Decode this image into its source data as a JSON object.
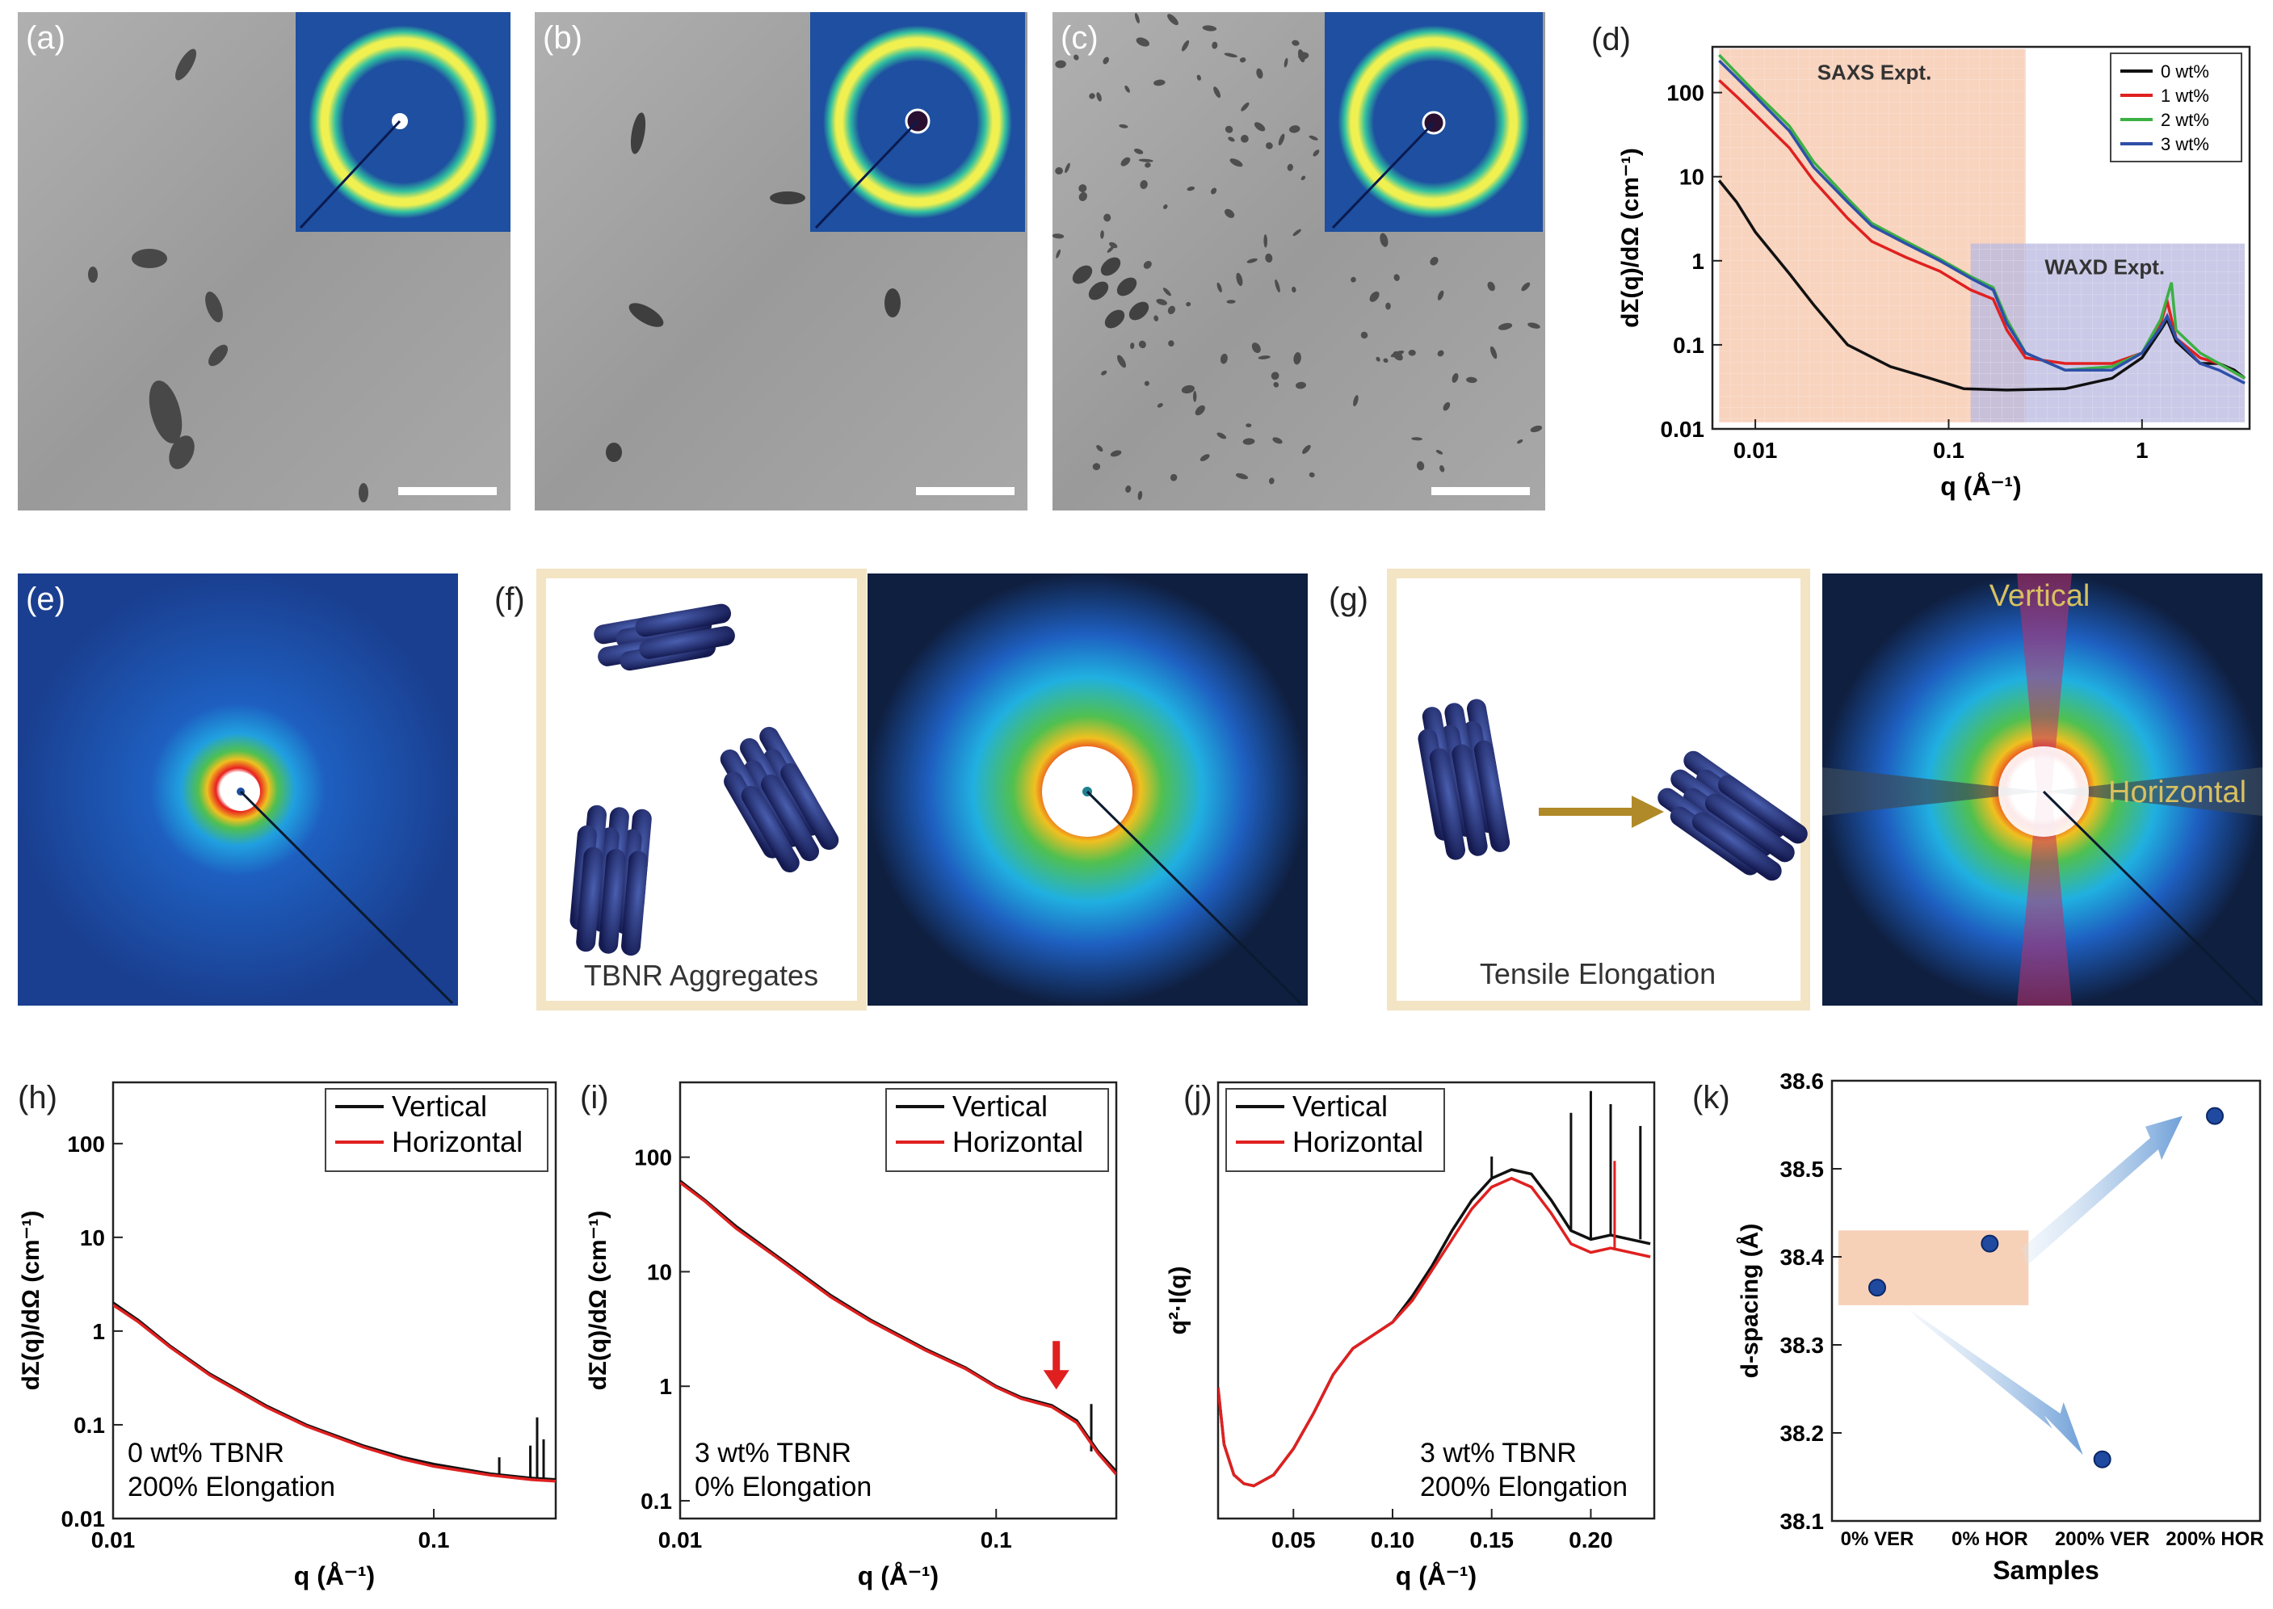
{
  "panel_labels": {
    "a": "(a)",
    "b": "(b)",
    "c": "(c)",
    "d": "(d)",
    "e": "(e)",
    "f": "(f)",
    "g": "(g)",
    "h": "(h)",
    "i": "(i)",
    "j": "(j)",
    "k": "(k)"
  },
  "colors": {
    "black": "#111111",
    "red": "#e02020",
    "green": "#3cb043",
    "blue": "#2e4fa8",
    "saxs_bg": "#f5c4a8",
    "waxd_bg": "#b8b8e0",
    "frame": "#f3e4c4",
    "det_bg": "#1e4fa0"
  },
  "schematic": {
    "f_caption": "TBNR Aggregates",
    "g_caption": "Tensile Elongation",
    "g_vertical": "Vertical",
    "g_horizontal": "Horizontal"
  },
  "chart_data": [
    {
      "id": "d",
      "type": "line",
      "xscale": "log",
      "yscale": "log",
      "xlabel": "q (Å⁻¹)",
      "ylabel": "dΣ(q)/dΩ (cm⁻¹)",
      "xlim": [
        0.006,
        3.6
      ],
      "ylim": [
        0.01,
        350
      ],
      "xticks": [
        {
          "v": 0.01,
          "t": "0.01"
        },
        {
          "v": 0.1,
          "t": "0.1"
        },
        {
          "v": 1,
          "t": "1"
        }
      ],
      "yticks": [
        {
          "v": 0.01,
          "t": "0.01"
        },
        {
          "v": 0.1,
          "t": "0.1"
        },
        {
          "v": 1,
          "t": "1"
        },
        {
          "v": 10,
          "t": "10"
        },
        {
          "v": 100,
          "t": "100"
        }
      ],
      "regions": [
        {
          "label": "SAXS Expt.",
          "x0": 0.0065,
          "x1": 0.25,
          "y0": 0.012,
          "y1": 330,
          "color": "saxs_bg"
        },
        {
          "label": "WAXD Expt.",
          "x0": 0.13,
          "x1": 3.4,
          "y0": 0.012,
          "y1": 1.6,
          "color": "waxd_bg"
        }
      ],
      "legend": "top-right",
      "series": [
        {
          "name": "0 wt%",
          "color": "black",
          "points": [
            [
              0.0065,
              9
            ],
            [
              0.008,
              5
            ],
            [
              0.01,
              2.2
            ],
            [
              0.015,
              0.7
            ],
            [
              0.02,
              0.3
            ],
            [
              0.03,
              0.1
            ],
            [
              0.05,
              0.055
            ],
            [
              0.08,
              0.04
            ],
            [
              0.12,
              0.03
            ],
            [
              0.2,
              0.029
            ],
            [
              0.4,
              0.03
            ],
            [
              0.7,
              0.04
            ],
            [
              1.0,
              0.07
            ],
            [
              1.25,
              0.15
            ],
            [
              1.35,
              0.2
            ],
            [
              1.5,
              0.11
            ],
            [
              2.0,
              0.06
            ],
            [
              2.5,
              0.06
            ],
            [
              3.0,
              0.05
            ],
            [
              3.4,
              0.04
            ]
          ]
        },
        {
          "name": "1 wt%",
          "color": "red",
          "points": [
            [
              0.0065,
              140
            ],
            [
              0.008,
              90
            ],
            [
              0.01,
              55
            ],
            [
              0.015,
              22
            ],
            [
              0.02,
              9
            ],
            [
              0.03,
              3.2
            ],
            [
              0.04,
              1.7
            ],
            [
              0.06,
              1.1
            ],
            [
              0.09,
              0.75
            ],
            [
              0.13,
              0.45
            ],
            [
              0.17,
              0.35
            ],
            [
              0.2,
              0.15
            ],
            [
              0.25,
              0.07
            ],
            [
              0.4,
              0.06
            ],
            [
              0.7,
              0.06
            ],
            [
              1.0,
              0.08
            ],
            [
              1.25,
              0.18
            ],
            [
              1.35,
              0.33
            ],
            [
              1.5,
              0.12
            ],
            [
              2.0,
              0.07
            ],
            [
              2.5,
              0.06
            ],
            [
              3.4,
              0.04
            ]
          ]
        },
        {
          "name": "2 wt%",
          "color": "green",
          "points": [
            [
              0.0065,
              280
            ],
            [
              0.008,
              170
            ],
            [
              0.01,
              100
            ],
            [
              0.015,
              40
            ],
            [
              0.02,
              15
            ],
            [
              0.03,
              5.5
            ],
            [
              0.04,
              2.8
            ],
            [
              0.06,
              1.7
            ],
            [
              0.09,
              1.05
            ],
            [
              0.13,
              0.65
            ],
            [
              0.17,
              0.48
            ],
            [
              0.2,
              0.2
            ],
            [
              0.25,
              0.08
            ],
            [
              0.4,
              0.05
            ],
            [
              0.7,
              0.055
            ],
            [
              1.0,
              0.08
            ],
            [
              1.25,
              0.2
            ],
            [
              1.42,
              0.55
            ],
            [
              1.5,
              0.15
            ],
            [
              2.0,
              0.08
            ],
            [
              2.5,
              0.06
            ],
            [
              3.4,
              0.04
            ]
          ]
        },
        {
          "name": "3 wt%",
          "color": "blue",
          "points": [
            [
              0.0065,
              240
            ],
            [
              0.008,
              150
            ],
            [
              0.01,
              90
            ],
            [
              0.015,
              35
            ],
            [
              0.02,
              13
            ],
            [
              0.03,
              5
            ],
            [
              0.04,
              2.6
            ],
            [
              0.06,
              1.6
            ],
            [
              0.09,
              1.0
            ],
            [
              0.13,
              0.62
            ],
            [
              0.17,
              0.45
            ],
            [
              0.2,
              0.18
            ],
            [
              0.25,
              0.08
            ],
            [
              0.4,
              0.05
            ],
            [
              0.7,
              0.05
            ],
            [
              1.0,
              0.08
            ],
            [
              1.25,
              0.16
            ],
            [
              1.35,
              0.22
            ],
            [
              1.5,
              0.12
            ],
            [
              2.0,
              0.06
            ],
            [
              2.5,
              0.05
            ],
            [
              3.4,
              0.035
            ]
          ]
        }
      ]
    },
    {
      "id": "h",
      "type": "line",
      "xscale": "log",
      "yscale": "log",
      "xlabel": "q (Å⁻¹)",
      "ylabel": "dΣ(q)/dΩ (cm⁻¹)",
      "xlim": [
        0.01,
        0.24
      ],
      "ylim": [
        0.01,
        450
      ],
      "xticks": [
        {
          "v": 0.01,
          "t": "0.01"
        },
        {
          "v": 0.1,
          "t": "0.1"
        }
      ],
      "yticks": [
        {
          "v": 0.01,
          "t": "0.01"
        },
        {
          "v": 0.1,
          "t": "0.1"
        },
        {
          "v": 1,
          "t": "1"
        },
        {
          "v": 10,
          "t": "10"
        },
        {
          "v": 100,
          "t": "100"
        }
      ],
      "annotation": [
        "0 wt% TBNR",
        "200% Elongation"
      ],
      "legend": "top-right",
      "series": [
        {
          "name": "Vertical",
          "color": "black",
          "points": [
            [
              0.01,
              2.0
            ],
            [
              0.012,
              1.3
            ],
            [
              0.015,
              0.7
            ],
            [
              0.02,
              0.35
            ],
            [
              0.03,
              0.16
            ],
            [
              0.04,
              0.1
            ],
            [
              0.06,
              0.06
            ],
            [
              0.08,
              0.045
            ],
            [
              0.1,
              0.038
            ],
            [
              0.15,
              0.03
            ],
            [
              0.2,
              0.027
            ],
            [
              0.24,
              0.026
            ]
          ],
          "spikes": [
            [
              0.16,
              0.045
            ],
            [
              0.2,
              0.06
            ],
            [
              0.21,
              0.12
            ],
            [
              0.22,
              0.07
            ]
          ]
        },
        {
          "name": "Horizontal",
          "color": "red",
          "points": [
            [
              0.01,
              1.9
            ],
            [
              0.012,
              1.25
            ],
            [
              0.015,
              0.68
            ],
            [
              0.02,
              0.34
            ],
            [
              0.03,
              0.155
            ],
            [
              0.04,
              0.097
            ],
            [
              0.06,
              0.058
            ],
            [
              0.08,
              0.043
            ],
            [
              0.1,
              0.036
            ],
            [
              0.15,
              0.029
            ],
            [
              0.2,
              0.026
            ],
            [
              0.24,
              0.025
            ]
          ]
        }
      ]
    },
    {
      "id": "i",
      "type": "line",
      "xscale": "log",
      "yscale": "log",
      "xlabel": "q (Å⁻¹)",
      "ylabel": "dΣ(q)/dΩ (cm⁻¹)",
      "xlim": [
        0.01,
        0.24
      ],
      "ylim": [
        0.07,
        450
      ],
      "xticks": [
        {
          "v": 0.01,
          "t": "0.01"
        },
        {
          "v": 0.1,
          "t": "0.1"
        }
      ],
      "yticks": [
        {
          "v": 0.1,
          "t": "0.1"
        },
        {
          "v": 1,
          "t": "1"
        },
        {
          "v": 10,
          "t": "10"
        },
        {
          "v": 100,
          "t": "100"
        }
      ],
      "annotation": [
        "3 wt% TBNR",
        "0% Elongation"
      ],
      "arrow_at": {
        "x": 0.155,
        "y": 0.7
      },
      "legend": "top-right",
      "series": [
        {
          "name": "Vertical",
          "color": "black",
          "points": [
            [
              0.01,
              62
            ],
            [
              0.012,
              42
            ],
            [
              0.015,
              25
            ],
            [
              0.02,
              14
            ],
            [
              0.03,
              6.2
            ],
            [
              0.04,
              3.8
            ],
            [
              0.06,
              2.1
            ],
            [
              0.08,
              1.45
            ],
            [
              0.1,
              1.0
            ],
            [
              0.12,
              0.8
            ],
            [
              0.15,
              0.68
            ],
            [
              0.18,
              0.5
            ],
            [
              0.21,
              0.27
            ],
            [
              0.24,
              0.18
            ]
          ],
          "spikes": [
            [
              0.2,
              0.7
            ]
          ]
        },
        {
          "name": "Horizontal",
          "color": "red",
          "points": [
            [
              0.01,
              60
            ],
            [
              0.012,
              41
            ],
            [
              0.015,
              24
            ],
            [
              0.02,
              13.6
            ],
            [
              0.03,
              6.0
            ],
            [
              0.04,
              3.7
            ],
            [
              0.06,
              2.05
            ],
            [
              0.08,
              1.42
            ],
            [
              0.1,
              0.98
            ],
            [
              0.12,
              0.78
            ],
            [
              0.15,
              0.66
            ],
            [
              0.18,
              0.48
            ],
            [
              0.21,
              0.26
            ],
            [
              0.24,
              0.17
            ]
          ]
        }
      ]
    },
    {
      "id": "j",
      "type": "line",
      "xscale": "linear",
      "yscale": "linear",
      "xlabel": "q (Å⁻¹)",
      "ylabel": "q²·I(q)",
      "xlim": [
        0.012,
        0.232
      ],
      "ylim": [
        0,
        1
      ],
      "xticks": [
        {
          "v": 0.05,
          "t": "0.05"
        },
        {
          "v": 0.1,
          "t": "0.10"
        },
        {
          "v": 0.15,
          "t": "0.15"
        },
        {
          "v": 0.2,
          "t": "0.20"
        }
      ],
      "yticks": [],
      "annotation": [
        "3 wt% TBNR",
        "200% Elongation"
      ],
      "legend": "top-left",
      "series": [
        {
          "name": "Vertical",
          "color": "black",
          "points": [
            [
              0.012,
              0.3
            ],
            [
              0.015,
              0.17
            ],
            [
              0.02,
              0.1
            ],
            [
              0.025,
              0.08
            ],
            [
              0.03,
              0.075
            ],
            [
              0.04,
              0.1
            ],
            [
              0.05,
              0.16
            ],
            [
              0.06,
              0.24
            ],
            [
              0.07,
              0.33
            ],
            [
              0.08,
              0.39
            ],
            [
              0.09,
              0.42
            ],
            [
              0.1,
              0.45
            ],
            [
              0.11,
              0.51
            ],
            [
              0.12,
              0.58
            ],
            [
              0.13,
              0.66
            ],
            [
              0.14,
              0.73
            ],
            [
              0.15,
              0.78
            ],
            [
              0.16,
              0.8
            ],
            [
              0.17,
              0.79
            ],
            [
              0.18,
              0.73
            ],
            [
              0.19,
              0.66
            ],
            [
              0.2,
              0.64
            ],
            [
              0.21,
              0.65
            ],
            [
              0.22,
              0.64
            ],
            [
              0.23,
              0.63
            ]
          ],
          "spikes": [
            [
              0.15,
              0.83
            ],
            [
              0.19,
              0.93
            ],
            [
              0.2,
              0.98
            ],
            [
              0.21,
              0.95
            ],
            [
              0.225,
              0.9
            ]
          ]
        },
        {
          "name": "Horizontal",
          "color": "red",
          "points": [
            [
              0.012,
              0.3
            ],
            [
              0.015,
              0.17
            ],
            [
              0.02,
              0.1
            ],
            [
              0.025,
              0.08
            ],
            [
              0.03,
              0.075
            ],
            [
              0.04,
              0.1
            ],
            [
              0.05,
              0.16
            ],
            [
              0.06,
              0.24
            ],
            [
              0.07,
              0.33
            ],
            [
              0.08,
              0.39
            ],
            [
              0.09,
              0.42
            ],
            [
              0.1,
              0.45
            ],
            [
              0.11,
              0.5
            ],
            [
              0.12,
              0.57
            ],
            [
              0.13,
              0.64
            ],
            [
              0.14,
              0.71
            ],
            [
              0.15,
              0.76
            ],
            [
              0.16,
              0.78
            ],
            [
              0.17,
              0.76
            ],
            [
              0.18,
              0.7
            ],
            [
              0.19,
              0.63
            ],
            [
              0.2,
              0.61
            ],
            [
              0.21,
              0.62
            ],
            [
              0.22,
              0.61
            ],
            [
              0.23,
              0.6
            ]
          ],
          "spikes": [
            [
              0.212,
              0.82
            ]
          ]
        }
      ]
    },
    {
      "id": "k",
      "type": "scatter",
      "xlabel": "Samples",
      "ylabel": "d-spacing (Å)",
      "categories": [
        "0% VER",
        "0% HOR",
        "200% VER",
        "200% HOR"
      ],
      "ylim": [
        38.1,
        38.6
      ],
      "yticks": [
        {
          "v": 38.1,
          "t": "38.1"
        },
        {
          "v": 38.2,
          "t": "38.2"
        },
        {
          "v": 38.3,
          "t": "38.3"
        },
        {
          "v": 38.4,
          "t": "38.4"
        },
        {
          "v": 38.5,
          "t": "38.5"
        },
        {
          "v": 38.6,
          "t": "38.6"
        }
      ],
      "values": [
        38.365,
        38.415,
        38.17,
        38.56
      ]
    }
  ]
}
